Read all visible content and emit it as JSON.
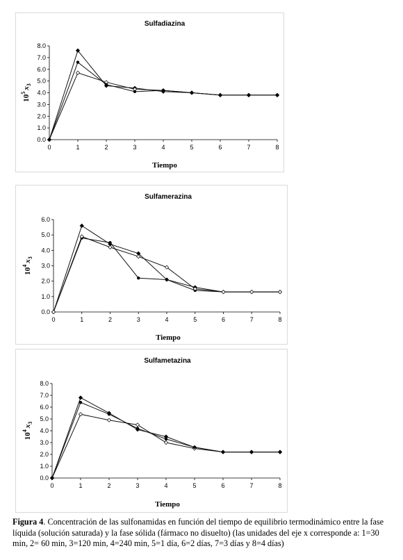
{
  "chart_data": [
    {
      "type": "line",
      "title": "Sulfadiazina",
      "xlabel": "Tiempo",
      "ylabel": {
        "base": "10",
        "exp": "5",
        "var": "x",
        "sub": "3"
      },
      "x": [
        0,
        1,
        2,
        3,
        4,
        5,
        6,
        7,
        8
      ],
      "xlim": [
        0,
        8
      ],
      "ylim": [
        0,
        8
      ],
      "yticks": [
        "0.0",
        "1.0",
        "2.0",
        "3.0",
        "4.0",
        "5.0",
        "6.0",
        "7.0",
        "8.0"
      ],
      "xticks": [
        "0",
        "1",
        "2",
        "3",
        "4",
        "5",
        "6",
        "7",
        "8"
      ],
      "grid": false,
      "series": [
        {
          "marker": "diamond",
          "values": [
            0,
            7.6,
            4.6,
            4.4,
            4.1,
            4.0,
            3.8,
            3.8,
            3.8
          ]
        },
        {
          "marker": "diamond-open",
          "values": [
            0,
            5.7,
            4.9,
            4.3,
            4.2,
            4.0,
            3.8,
            3.8,
            3.8
          ]
        },
        {
          "marker": "circle",
          "values": [
            0,
            6.6,
            4.7,
            4.1,
            4.2,
            4.0,
            3.8,
            3.8,
            3.8
          ]
        }
      ]
    },
    {
      "type": "line",
      "title": "Sulfamerazina",
      "xlabel": "Tiempo",
      "ylabel": {
        "base": "10",
        "exp": "4",
        "var": "x",
        "sub": "3"
      },
      "x": [
        0,
        1,
        2,
        3,
        4,
        5,
        6,
        7,
        8
      ],
      "xlim": [
        0,
        8
      ],
      "ylim": [
        0,
        6
      ],
      "yticks": [
        "0.0",
        "1.0",
        "2.0",
        "3.0",
        "4.0",
        "5.0",
        "6.0"
      ],
      "xticks": [
        "0",
        "1",
        "2",
        "3",
        "4",
        "5",
        "6",
        "7",
        "8"
      ],
      "grid": false,
      "series": [
        {
          "marker": "diamond",
          "values": [
            0,
            5.6,
            4.4,
            3.8,
            2.1,
            1.6,
            1.3,
            1.3,
            1.3
          ]
        },
        {
          "marker": "circle",
          "values": [
            0,
            4.8,
            4.5,
            2.2,
            2.1,
            1.4,
            1.3,
            1.3,
            1.3
          ]
        },
        {
          "marker": "diamond-open",
          "values": [
            0,
            4.9,
            4.2,
            3.6,
            2.9,
            1.5,
            1.3,
            1.3,
            1.3
          ]
        }
      ]
    },
    {
      "type": "line",
      "title": "Sulfametazina",
      "xlabel": "Tiempo",
      "ylabel": {
        "base": "10",
        "exp": "4",
        "var": "x",
        "sub": "3"
      },
      "x": [
        0,
        1,
        2,
        3,
        4,
        5,
        6,
        7,
        8
      ],
      "xlim": [
        0,
        8
      ],
      "ylim": [
        0,
        8
      ],
      "yticks": [
        "0.0",
        "1.0",
        "2.0",
        "3.0",
        "4.0",
        "5.0",
        "6.0",
        "7.0",
        "8.0"
      ],
      "xticks": [
        "0",
        "1",
        "2",
        "3",
        "4",
        "5",
        "6",
        "7",
        "8"
      ],
      "grid": false,
      "series": [
        {
          "marker": "diamond",
          "values": [
            0,
            6.8,
            5.5,
            4.1,
            3.5,
            2.6,
            2.2,
            2.2,
            2.2
          ]
        },
        {
          "marker": "diamond-open",
          "values": [
            0,
            5.4,
            4.9,
            4.5,
            3.0,
            2.5,
            2.2,
            2.2,
            2.2
          ]
        },
        {
          "marker": "circle",
          "values": [
            0,
            6.4,
            5.4,
            4.2,
            3.3,
            2.6,
            2.2,
            2.2,
            2.2
          ]
        }
      ]
    }
  ],
  "caption": {
    "label": "Figura 4",
    "text": ". Concentración de las sulfonamidas en función del tiempo de equilibrio termodinámico entre la fase líquida (solución saturada) y la fase sólida (fármaco no disuelto) (las unidades del eje x corresponde a: 1=30 min, 2= 60 min, 3=120 min, 4=240 min, 5=1 día, 6=2 días, 7=3 días y 8=4 días)"
  }
}
